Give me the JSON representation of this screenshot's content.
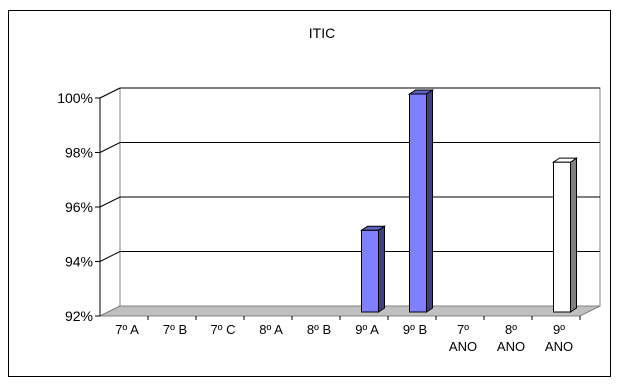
{
  "chart_data": {
    "type": "bar",
    "title": "ITIC",
    "categories": [
      "7º A",
      "7º B",
      "7º C",
      "8º A",
      "8º B",
      "9º A",
      "9º B",
      "7º ANO",
      "8º ANO",
      "9º ANO"
    ],
    "category_lines": [
      [
        "7º A"
      ],
      [
        "7º B"
      ],
      [
        "7º C"
      ],
      [
        "8º A"
      ],
      [
        "8º B"
      ],
      [
        "9º A"
      ],
      [
        "9º B"
      ],
      [
        "7º",
        "ANO"
      ],
      [
        "8º",
        "ANO"
      ],
      [
        "9º",
        "ANO"
      ]
    ],
    "values": [
      null,
      null,
      null,
      null,
      null,
      0.95,
      1.0,
      null,
      null,
      0.975
    ],
    "bar_colors": [
      "#8080ff",
      "#8080ff",
      "#8080ff",
      "#8080ff",
      "#8080ff",
      "#8080ff",
      "#8080ff",
      "#ffffff",
      "#ffffff",
      "#ffffff"
    ],
    "ylim": [
      0.92,
      1.0
    ],
    "yticks": [
      "92%",
      "94%",
      "96%",
      "98%",
      "100%"
    ],
    "grid": true,
    "legend": "none",
    "style": "3d"
  }
}
